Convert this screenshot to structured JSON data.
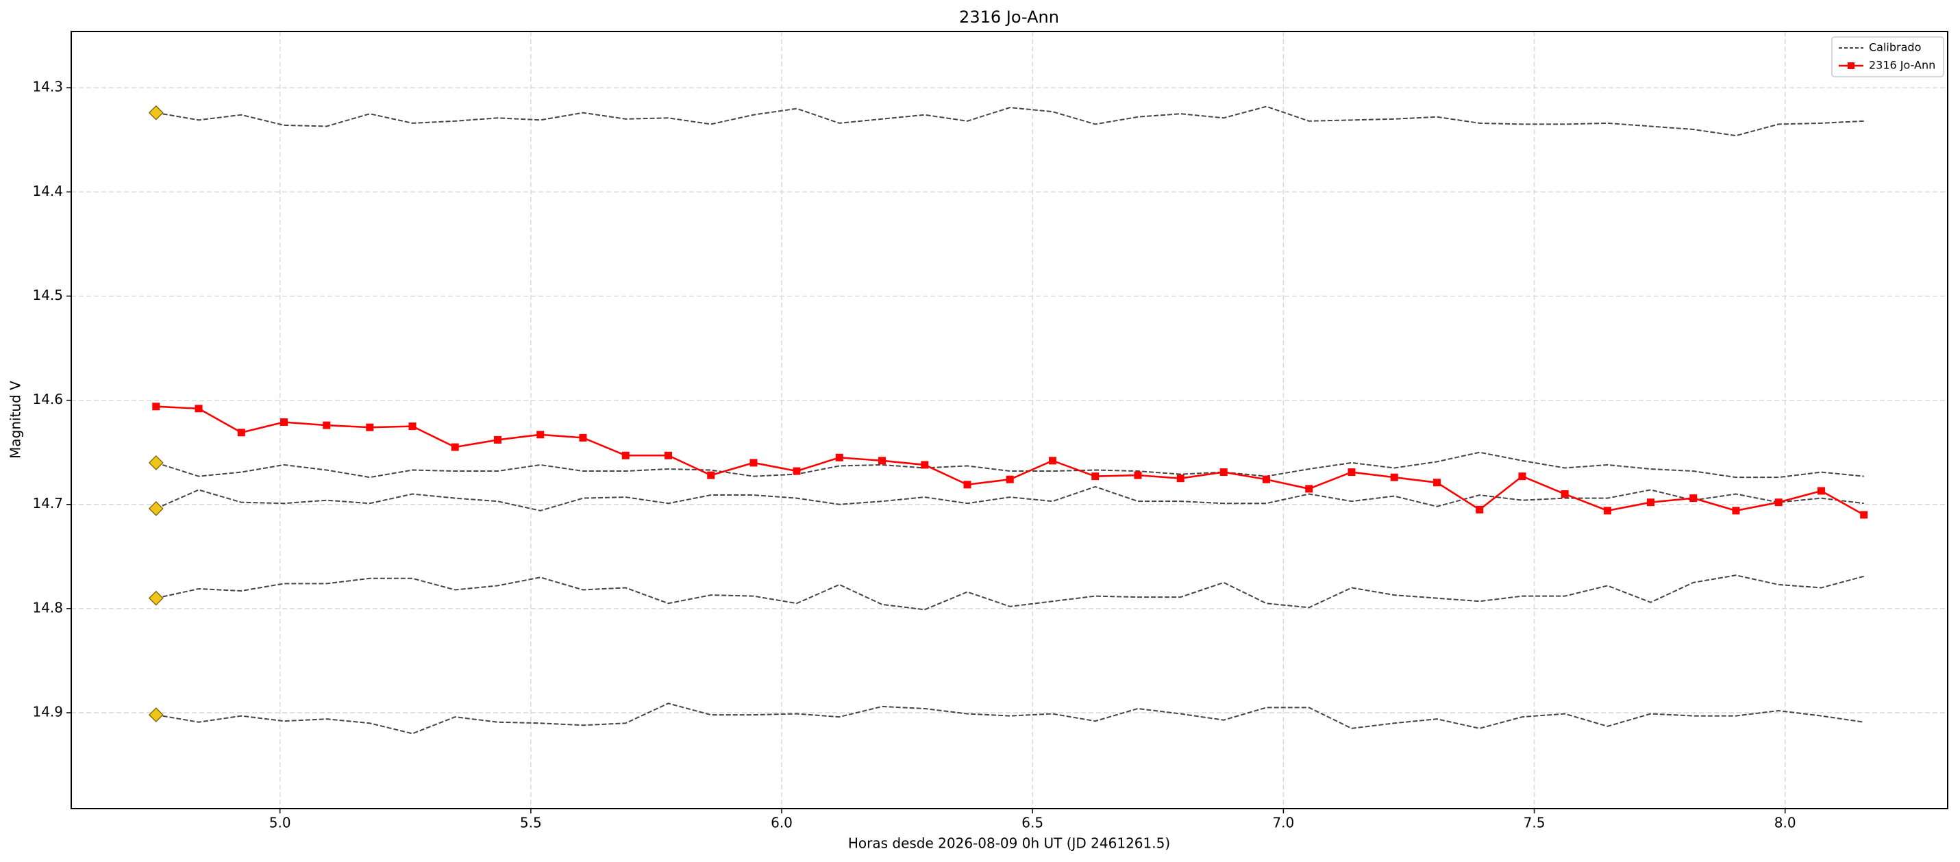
{
  "chart_data": {
    "type": "line",
    "title": "2316 Jo-Ann",
    "x_label": "Horas desde 2026-08-09 0h UT (JD 2461261.5)",
    "y_label": "Magnitud V",
    "x": [
      4.753,
      4.838,
      4.923,
      5.008,
      5.093,
      5.179,
      5.264,
      5.349,
      5.434,
      5.519,
      5.604,
      5.689,
      5.774,
      5.859,
      5.944,
      6.03,
      6.115,
      6.2,
      6.285,
      6.37,
      6.455,
      6.54,
      6.625,
      6.71,
      6.795,
      6.881,
      6.966,
      7.051,
      7.136,
      7.221,
      7.306,
      7.391,
      7.476,
      7.561,
      7.646,
      7.732,
      7.817,
      7.902,
      7.987,
      8.072,
      8.157
    ],
    "calibrated": {
      "name": "Calibrado",
      "color": "#444444",
      "marker_color": "#f0c419",
      "lines": [
        [
          14.324,
          14.331,
          14.326,
          14.336,
          14.337,
          14.325,
          14.334,
          14.332,
          14.329,
          14.331,
          14.324,
          14.33,
          14.329,
          14.335,
          14.326,
          14.32,
          14.334,
          14.33,
          14.326,
          14.332,
          14.319,
          14.323,
          14.335,
          14.328,
          14.325,
          14.329,
          14.318,
          14.332,
          14.331,
          14.33,
          14.328,
          14.334,
          14.335,
          14.335,
          14.334,
          14.337,
          14.34,
          14.346,
          14.335,
          14.334,
          14.332
        ],
        [
          14.66,
          14.673,
          14.669,
          14.662,
          14.667,
          14.674,
          14.667,
          14.668,
          14.668,
          14.662,
          14.668,
          14.668,
          14.666,
          14.667,
          14.673,
          14.671,
          14.663,
          14.662,
          14.665,
          14.663,
          14.668,
          14.668,
          14.667,
          14.668,
          14.671,
          14.669,
          14.673,
          14.666,
          14.66,
          14.665,
          14.659,
          14.65,
          14.658,
          14.665,
          14.662,
          14.666,
          14.668,
          14.674,
          14.674,
          14.669,
          14.673
        ],
        [
          14.704,
          14.686,
          14.698,
          14.699,
          14.696,
          14.699,
          14.69,
          14.694,
          14.697,
          14.706,
          14.694,
          14.693,
          14.699,
          14.691,
          14.691,
          14.694,
          14.7,
          14.697,
          14.693,
          14.699,
          14.693,
          14.697,
          14.683,
          14.697,
          14.697,
          14.699,
          14.699,
          14.69,
          14.697,
          14.692,
          14.702,
          14.691,
          14.696,
          14.694,
          14.694,
          14.686,
          14.696,
          14.69,
          14.698,
          14.694,
          14.699
        ],
        [
          14.79,
          14.781,
          14.783,
          14.776,
          14.776,
          14.771,
          14.771,
          14.782,
          14.778,
          14.77,
          14.782,
          14.78,
          14.795,
          14.787,
          14.788,
          14.795,
          14.777,
          14.796,
          14.801,
          14.784,
          14.798,
          14.793,
          14.788,
          14.789,
          14.789,
          14.775,
          14.795,
          14.799,
          14.78,
          14.787,
          14.79,
          14.793,
          14.788,
          14.788,
          14.778,
          14.794,
          14.775,
          14.768,
          14.777,
          14.78,
          14.769
        ],
        [
          14.902,
          14.909,
          14.903,
          14.908,
          14.906,
          14.91,
          14.92,
          14.904,
          14.909,
          14.91,
          14.912,
          14.91,
          14.891,
          14.902,
          14.902,
          14.901,
          14.904,
          14.894,
          14.896,
          14.901,
          14.903,
          14.901,
          14.908,
          14.896,
          14.901,
          14.907,
          14.895,
          14.895,
          14.915,
          14.91,
          14.906,
          14.915,
          14.904,
          14.901,
          14.913,
          14.901,
          14.903,
          14.903,
          14.898,
          14.903,
          14.909
        ]
      ]
    },
    "series": [
      {
        "name": "2316 Jo-Ann",
        "color": "#ff0000",
        "values": [
          14.606,
          14.608,
          14.631,
          14.621,
          14.624,
          14.626,
          14.625,
          14.645,
          14.638,
          14.633,
          14.636,
          14.653,
          14.653,
          14.672,
          14.66,
          14.668,
          14.655,
          14.658,
          14.662,
          14.681,
          14.676,
          14.658,
          14.673,
          14.672,
          14.675,
          14.669,
          14.676,
          14.685,
          14.669,
          14.674,
          14.679,
          14.705,
          14.673,
          14.69,
          14.706,
          14.698,
          14.694,
          14.706,
          14.698,
          14.687,
          14.71
        ]
      }
    ],
    "xlim": [
      4.584,
      8.324
    ],
    "ylim": [
      14.992,
      14.246
    ],
    "xticks": [
      {
        "value": 5,
        "label": "5.0"
      },
      5.5,
      {
        "value": 6,
        "label": "6.0"
      },
      6.5,
      {
        "value": 7,
        "label": "7.0"
      },
      7.5,
      {
        "value": 8,
        "label": "8.0"
      }
    ],
    "yticks": [
      14.3,
      14.4,
      14.5,
      14.6,
      14.7,
      14.8,
      14.9
    ],
    "grid": true,
    "legend": "upper-right"
  }
}
